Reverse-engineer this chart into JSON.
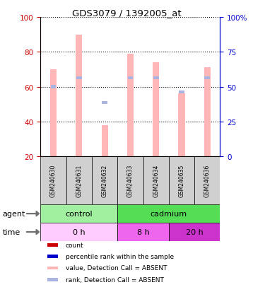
{
  "title": "GDS3079 / 1392005_at",
  "samples": [
    "GSM240630",
    "GSM240631",
    "GSM240632",
    "GSM240633",
    "GSM240634",
    "GSM240635",
    "GSM240636"
  ],
  "bar_values": [
    70,
    90,
    38,
    79,
    74,
    56,
    71
  ],
  "rank_values": [
    60,
    65,
    51,
    65,
    65,
    57,
    65
  ],
  "ylim_left": [
    20,
    100
  ],
  "ylim_right": [
    0,
    100
  ],
  "yticks_left": [
    20,
    40,
    60,
    80,
    100
  ],
  "yticks_right": [
    0,
    25,
    50,
    75,
    100
  ],
  "ytick_labels_right": [
    "0",
    "25",
    "50",
    "75",
    "100%"
  ],
  "bar_color": "#ffb6b6",
  "rank_color": "#aab4e0",
  "agent_control_color": "#a0f0a0",
  "agent_cadmium_color": "#55dd55",
  "time_0h_color": "#ffccff",
  "time_8h_color": "#ee66ee",
  "time_20h_color": "#cc33cc",
  "legend_items": [
    {
      "color": "#cc0000",
      "label": "count"
    },
    {
      "color": "#0000cc",
      "label": "percentile rank within the sample"
    },
    {
      "color": "#ffb6b6",
      "label": "value, Detection Call = ABSENT"
    },
    {
      "color": "#aab4e0",
      "label": "rank, Detection Call = ABSENT"
    }
  ],
  "left_axis_color": "#cc0000",
  "right_axis_color": "#0000cc",
  "bar_width": 0.25
}
